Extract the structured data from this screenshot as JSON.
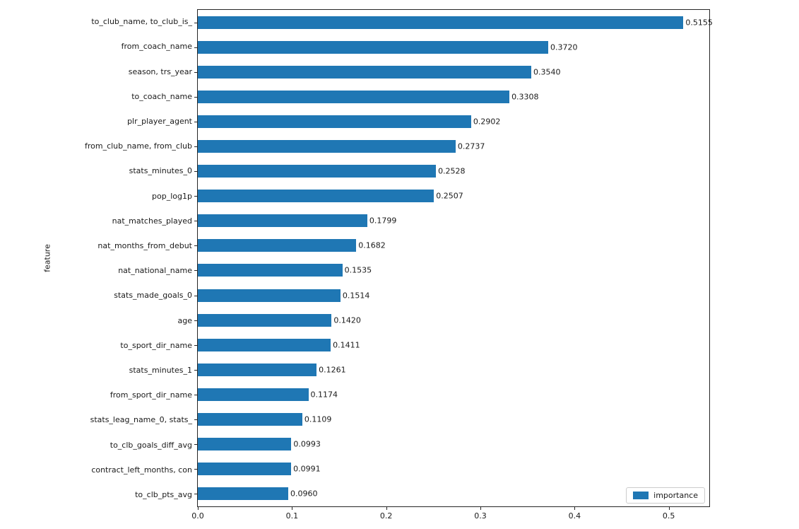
{
  "chart_data": {
    "type": "bar",
    "orientation": "horizontal",
    "title": "",
    "xlabel": "",
    "ylabel": "feature",
    "categories": [
      "to_club_name, to_club_is_",
      "from_coach_name",
      "season, trs_year",
      "to_coach_name",
      "plr_player_agent",
      "from_club_name, from_club",
      "stats_minutes_0",
      "pop_log1p",
      "nat_matches_played",
      "nat_months_from_debut",
      "nat_national_name",
      "stats_made_goals_0",
      "age",
      "to_sport_dir_name",
      "stats_minutes_1",
      "from_sport_dir_name",
      "stats_leag_name_0, stats_",
      "to_clb_goals_diff_avg",
      "contract_left_months, con",
      "to_clb_pts_avg"
    ],
    "series": [
      {
        "name": "importance",
        "values": [
          0.5155,
          0.372,
          0.354,
          0.3308,
          0.2902,
          0.2737,
          0.2528,
          0.2507,
          0.1799,
          0.1682,
          0.1535,
          0.1514,
          0.142,
          0.1411,
          0.1261,
          0.1174,
          0.1109,
          0.0993,
          0.0991,
          0.096
        ]
      }
    ],
    "value_label_decimals": 4,
    "xlim": [
      0,
      0.543
    ],
    "xticks": [
      0.0,
      0.1,
      0.2,
      0.3,
      0.4,
      0.5
    ],
    "xtick_labels": [
      "0.0",
      "0.1",
      "0.2",
      "0.3",
      "0.4",
      "0.5"
    ],
    "grid": false,
    "bar_color": "#1f77b4",
    "legend": {
      "position": "lower right",
      "label": "importance",
      "swatch_color": "#1f77b4"
    }
  }
}
